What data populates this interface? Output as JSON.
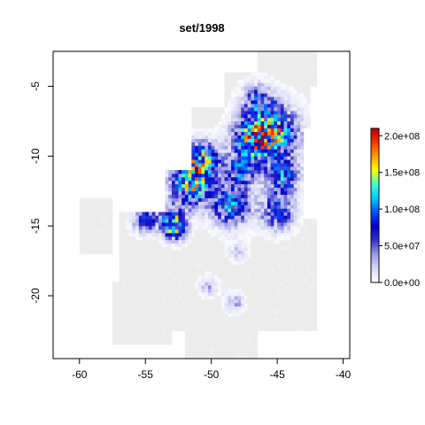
{
  "chart_data": {
    "type": "heatmap",
    "title": "set/1998",
    "xlabel": "",
    "ylabel": "",
    "xlim": [
      -62,
      -39.5
    ],
    "ylim": [
      -24.5,
      -2.5
    ],
    "x_ticks": [
      -60,
      -55,
      -50,
      -45,
      -40
    ],
    "x_tick_labels": [
      "-60",
      "-55",
      "-50",
      "-45",
      "-40"
    ],
    "y_ticks": [
      -5,
      -10,
      -15,
      -20
    ],
    "y_tick_labels": [
      "-5",
      "-10",
      "-15",
      "-20"
    ],
    "grid": false,
    "legend": {
      "position": "right",
      "min": 0,
      "max": 210000000.0,
      "ticks": [
        0,
        50000000.0,
        100000000.0,
        150000000.0,
        200000000.0
      ],
      "tick_labels": [
        "0.0e+00",
        "5.0e+07",
        "1.0e+08",
        "1.5e+08",
        "2.0e+08"
      ],
      "colors": [
        "#ffffff",
        "#d8d8f5",
        "#9999e6",
        "#3333cc",
        "#0000c8",
        "#0050ff",
        "#00c8ff",
        "#40ffd0",
        "#ffff00",
        "#ffa000",
        "#ff3000",
        "#b00000"
      ]
    },
    "no_data_color": "#ececec",
    "background_region": [
      {
        "x0": -60,
        "x1": -57.5,
        "y0": -17,
        "y1": -13
      },
      {
        "x0": -57,
        "x1": -50.5,
        "y0": -20,
        "y1": -14
      },
      {
        "x0": -57.5,
        "x1": -53,
        "y0": -23.5,
        "y1": -19
      },
      {
        "x0": -53,
        "x1": -42,
        "y0": -22.5,
        "y1": -14.5
      },
      {
        "x0": -52,
        "x1": -46.5,
        "y0": -24.5,
        "y1": -21.5
      },
      {
        "x0": -51.5,
        "x1": -43,
        "y0": -14.5,
        "y1": -6.5
      },
      {
        "x0": -49,
        "x1": -42.5,
        "y0": -8,
        "y1": -4
      },
      {
        "x0": -46.5,
        "x1": -42,
        "y0": -5,
        "y1": -2.5
      },
      {
        "x0": -53.5,
        "x1": -51,
        "y0": -14,
        "y1": -11
      }
    ],
    "hotspots": [
      {
        "x": -51.5,
        "y": -12.0,
        "value": 130000000.0,
        "radius": 1.6
      },
      {
        "x": -50.7,
        "y": -10.3,
        "value": 120000000.0,
        "radius": 1.3
      },
      {
        "x": -48.5,
        "y": -13.5,
        "value": 100000000.0,
        "radius": 1.5
      },
      {
        "x": -47.8,
        "y": -11.0,
        "value": 80000000.0,
        "radius": 1.3
      },
      {
        "x": -45.5,
        "y": -8.3,
        "value": 140000000.0,
        "radius": 2.0
      },
      {
        "x": -47.0,
        "y": -8.8,
        "value": 90000000.0,
        "radius": 1.5
      },
      {
        "x": -44.6,
        "y": -11.5,
        "value": 90000000.0,
        "radius": 1.3
      },
      {
        "x": -45.0,
        "y": -14.0,
        "value": 80000000.0,
        "radius": 1.3
      },
      {
        "x": -46.5,
        "y": -6.0,
        "value": 60000000.0,
        "radius": 1.2
      },
      {
        "x": -53.0,
        "y": -14.5,
        "value": 110000000.0,
        "radius": 1.0
      },
      {
        "x": -55.0,
        "y": -14.5,
        "value": 70000000.0,
        "radius": 1.0
      },
      {
        "x": -52.7,
        "y": -15.3,
        "value": 90000000.0,
        "radius": 0.8
      },
      {
        "x": -48.2,
        "y": -20.5,
        "value": 40000000.0,
        "radius": 0.7
      },
      {
        "x": -50.2,
        "y": -19.3,
        "value": 30000000.0,
        "radius": 0.7
      },
      {
        "x": -48.0,
        "y": -16.8,
        "value": 20000000.0,
        "radius": 0.8
      }
    ]
  }
}
